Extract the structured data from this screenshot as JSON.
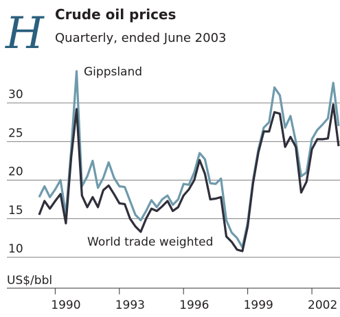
{
  "chart_data": {
    "type": "line",
    "badge": "H",
    "title": "Crude oil prices",
    "subtitle": "Quarterly, ended June 2003",
    "y_label": "US$/bbl",
    "x": [
      1989.25,
      1989.5,
      1989.75,
      1990,
      1990.25,
      1990.5,
      1990.75,
      1991,
      1991.25,
      1991.5,
      1991.75,
      1992,
      1992.25,
      1992.5,
      1992.75,
      1993,
      1993.25,
      1993.5,
      1993.75,
      1994,
      1994.25,
      1994.5,
      1994.75,
      1995,
      1995.25,
      1995.5,
      1995.75,
      1996,
      1996.25,
      1996.5,
      1996.75,
      1997,
      1997.25,
      1997.5,
      1997.75,
      1998,
      1998.25,
      1998.5,
      1998.75,
      1999,
      1999.25,
      1999.5,
      1999.75,
      2000,
      2000.25,
      2000.5,
      2000.75,
      2001,
      2001.25,
      2001.5,
      2001.75,
      2002,
      2002.25,
      2002.5,
      2002.75,
      2003,
      2003.25
    ],
    "series": [
      {
        "name": "Gippsland",
        "color": "#6e9aac",
        "values": [
          17.8,
          19.2,
          17.8,
          18.8,
          20.0,
          15.5,
          24.0,
          34.1,
          19.2,
          20.5,
          22.5,
          19.0,
          20.3,
          22.3,
          20.3,
          19.2,
          19.1,
          17.3,
          15.5,
          14.8,
          16.0,
          17.4,
          16.5,
          17.5,
          18.0,
          16.8,
          17.5,
          19.5,
          19.4,
          21.0,
          23.5,
          22.7,
          19.6,
          19.5,
          20.2,
          14.8,
          13.2,
          12.5,
          11.3,
          14.5,
          20.0,
          24.0,
          26.8,
          27.5,
          32.0,
          31.0,
          26.8,
          28.3,
          25.0,
          20.5,
          21.0,
          25.3,
          26.5,
          27.2,
          28.0,
          32.6,
          27.0
        ]
      },
      {
        "name": "World trade weighted",
        "color": "#2f2f3b",
        "values": [
          15.5,
          17.3,
          16.3,
          17.3,
          18.2,
          14.4,
          23.0,
          29.2,
          18.0,
          16.5,
          17.8,
          16.5,
          18.7,
          19.3,
          18.2,
          17.0,
          16.9,
          15.0,
          14.0,
          13.3,
          15.0,
          16.3,
          16.0,
          16.6,
          17.3,
          16.0,
          16.5,
          18.0,
          18.8,
          20.0,
          22.6,
          20.8,
          17.5,
          17.6,
          17.8,
          12.7,
          12.0,
          11.0,
          10.8,
          14.0,
          19.6,
          23.6,
          26.3,
          26.3,
          28.8,
          28.6,
          24.3,
          25.6,
          24.3,
          18.4,
          19.8,
          24.0,
          25.3,
          25.3,
          25.4,
          29.8,
          24.4
        ]
      }
    ],
    "xlim": [
      1989.25,
      2003.25
    ],
    "xticks": [
      1990,
      1993,
      1996,
      1999,
      2002
    ],
    "ylim": [
      6,
      36
    ],
    "yticks": [
      10,
      15,
      20,
      25,
      30
    ],
    "grid": true
  }
}
